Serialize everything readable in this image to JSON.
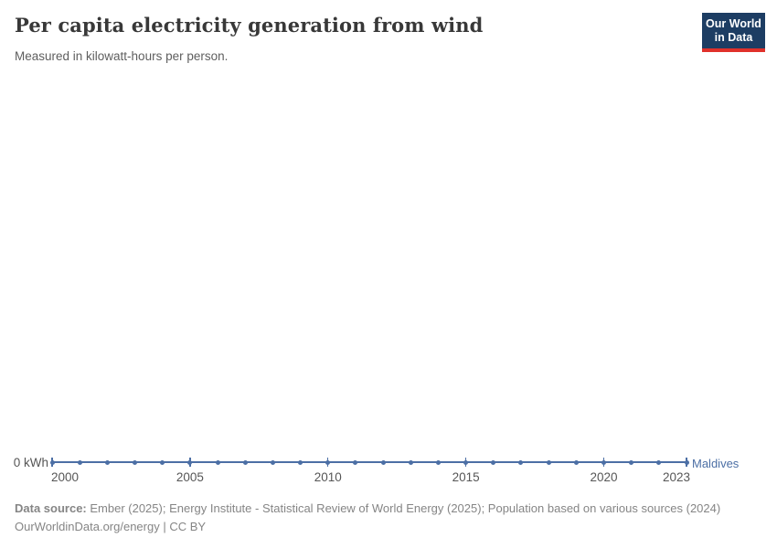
{
  "header": {
    "title": "Per capita electricity generation from wind",
    "subtitle": "Measured in kilowatt-hours per person."
  },
  "logo": {
    "line1": "Our World",
    "line2": "in Data",
    "background_color": "#1d3d63",
    "stripe_color": "#e0312b"
  },
  "chart_data": {
    "type": "line",
    "title": "Per capita electricity generation from wind",
    "ylabel": "kilowatt-hours per person",
    "y_zero_label": "0 kWh",
    "grid": false,
    "legend_position": "end-of-line",
    "xlim": [
      2000,
      2023
    ],
    "ylim": [
      0,
      0
    ],
    "x_ticks": [
      2000,
      2005,
      2010,
      2015,
      2020,
      2023
    ],
    "series": [
      {
        "name": "Maldives",
        "color": "#4c6fa5",
        "x": [
          2000,
          2001,
          2002,
          2003,
          2004,
          2005,
          2006,
          2007,
          2008,
          2009,
          2010,
          2011,
          2012,
          2013,
          2014,
          2015,
          2016,
          2017,
          2018,
          2019,
          2020,
          2021,
          2022,
          2023
        ],
        "values": [
          0,
          0,
          0,
          0,
          0,
          0,
          0,
          0,
          0,
          0,
          0,
          0,
          0,
          0,
          0,
          0,
          0,
          0,
          0,
          0,
          0,
          0,
          0,
          0
        ]
      }
    ]
  },
  "footer": {
    "source_label": "Data source:",
    "source_text": " Ember (2025); Energy Institute - Statistical Review of World Energy (2025); Population based on various sources (2024)",
    "license_line": "OurWorldinData.org/energy | CC BY"
  }
}
